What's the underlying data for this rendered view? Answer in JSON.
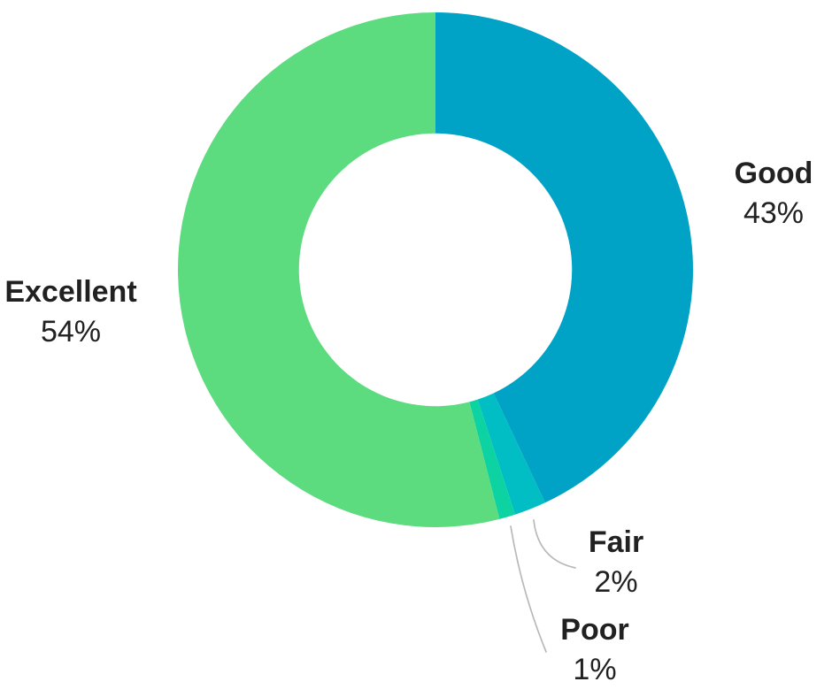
{
  "chart_data": {
    "type": "pie",
    "subtype": "donut",
    "hole_ratio": 0.53,
    "start_angle": "top",
    "direction": "clockwise",
    "legend_position": "none (direct outside labels with leader lines)",
    "background_color": "#ffffff",
    "label_color": "#212121",
    "leader_line_color": "#b9b9b9",
    "slices": [
      {
        "label": "Good",
        "value": 43,
        "pct_label": "43%",
        "color": "#00A2C6"
      },
      {
        "label": "Fair",
        "value": 2,
        "pct_label": "2%",
        "color": "#00BEC3"
      },
      {
        "label": "Poor",
        "value": 1,
        "pct_label": "1%",
        "color": "#0DD2A2"
      },
      {
        "label": "Excellent",
        "value": 54,
        "pct_label": "54%",
        "color": "#5CDB7F"
      }
    ]
  }
}
